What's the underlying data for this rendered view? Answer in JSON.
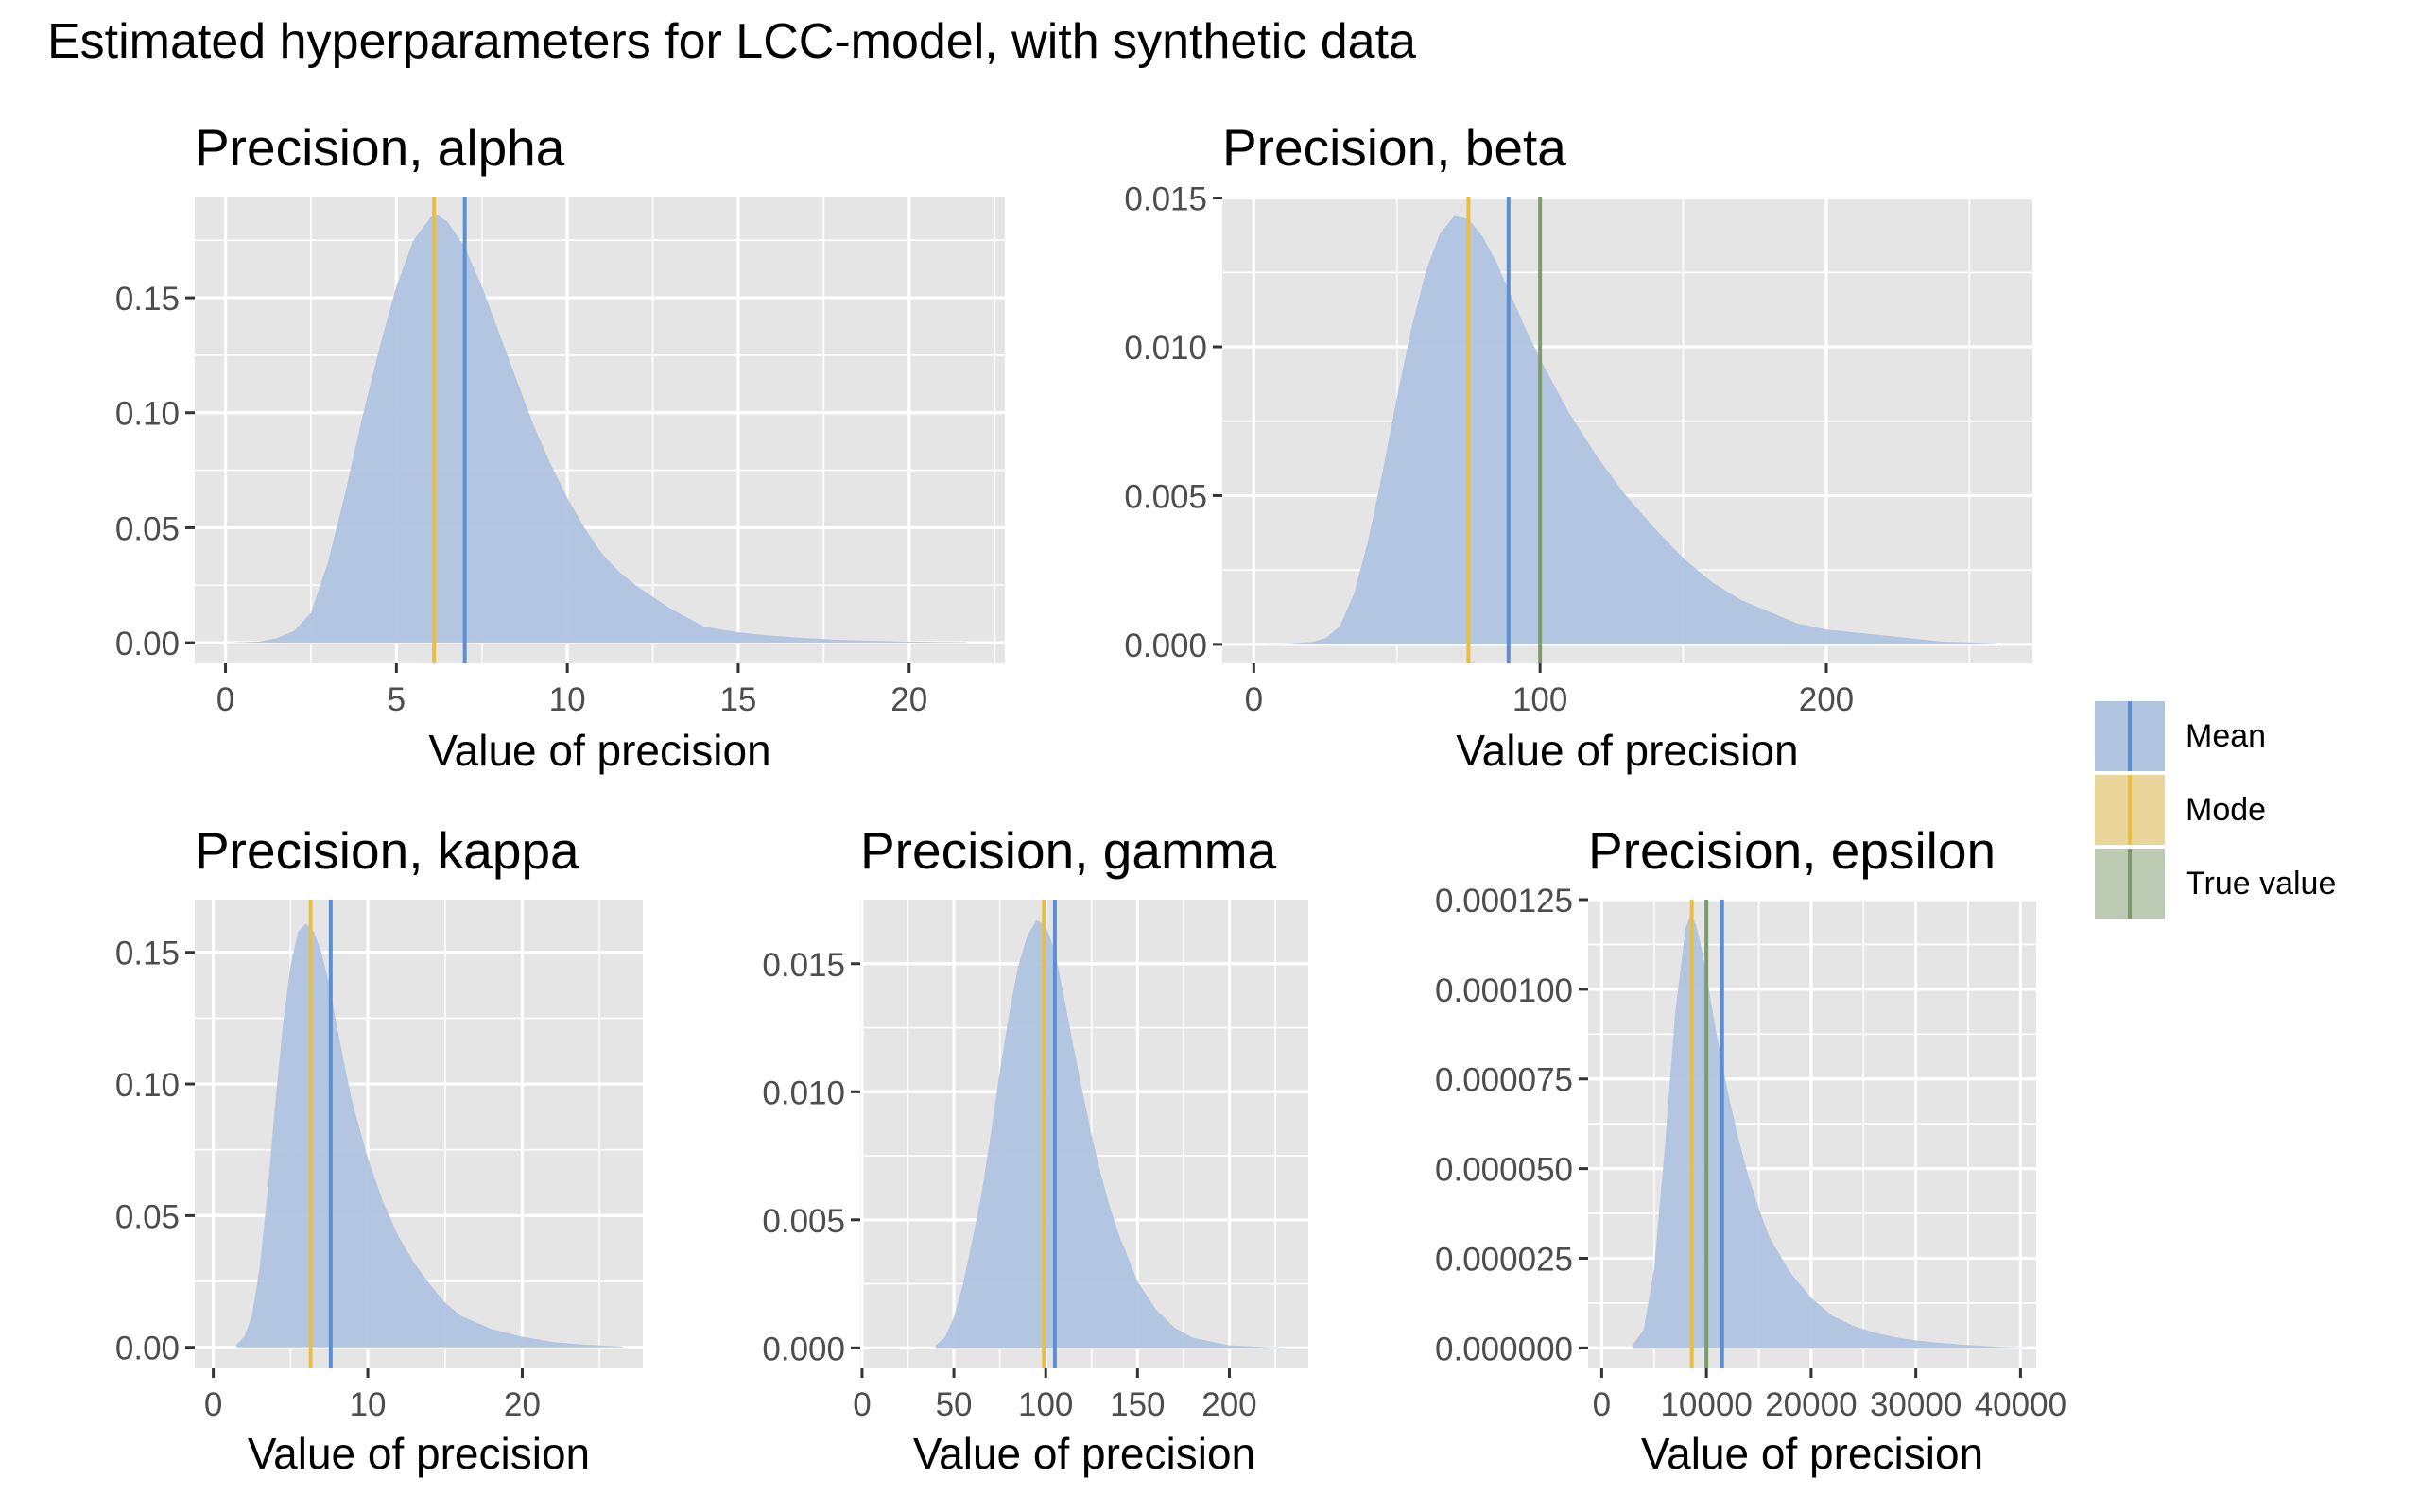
{
  "title": "Estimated hyperparameters for LCC-model, with synthetic data",
  "colors": {
    "density_fill": "#b0c4e0",
    "mean": "#5b8fd4",
    "mode": "#e8bf44",
    "true_value": "#7e9b6b",
    "panel_bg": "#e5e5e5",
    "grid": "#ffffff",
    "axis_text": "#4d4d4d"
  },
  "legend": {
    "items": [
      {
        "label": "Mean",
        "color_key": "mean"
      },
      {
        "label": "Mode",
        "color_key": "mode"
      },
      {
        "label": "True value",
        "color_key": "true_value"
      }
    ]
  },
  "chart_data": [
    {
      "type": "area",
      "title": "Precision, alpha",
      "xlabel": "Value of precision",
      "ylabel": "",
      "xlim": [
        -0.9,
        22.8
      ],
      "ylim": [
        -0.009,
        0.194
      ],
      "xticks": [
        0,
        5,
        10,
        15,
        20
      ],
      "xtick_labels": [
        "0",
        "5",
        "10",
        "15",
        "20"
      ],
      "yticks": [
        0,
        0.05,
        0.1,
        0.15
      ],
      "ytick_labels": [
        "0.00",
        "0.05",
        "0.10",
        "0.15"
      ],
      "density": {
        "x": [
          0,
          1,
          1.5,
          2,
          2.5,
          3,
          3.5,
          4,
          4.5,
          5,
          5.5,
          6,
          6.2,
          6.5,
          7,
          7.5,
          8,
          8.5,
          9,
          9.5,
          10,
          10.5,
          11,
          11.5,
          12,
          12.5,
          13,
          13.5,
          14,
          15,
          16,
          17,
          18,
          19,
          20,
          21,
          21.7
        ],
        "y": [
          0,
          0.0005,
          0.002,
          0.005,
          0.013,
          0.035,
          0.065,
          0.098,
          0.128,
          0.155,
          0.175,
          0.185,
          0.186,
          0.183,
          0.172,
          0.155,
          0.135,
          0.115,
          0.095,
          0.078,
          0.063,
          0.05,
          0.039,
          0.031,
          0.025,
          0.02,
          0.015,
          0.011,
          0.007,
          0.0045,
          0.003,
          0.002,
          0.0012,
          0.0008,
          0.0005,
          0.0003,
          0.0002
        ]
      },
      "mean": 7.0,
      "mode": 6.1
    },
    {
      "type": "area",
      "title": "Precision, beta",
      "xlabel": "Value of precision",
      "ylabel": "",
      "xlim": [
        -11,
        272
      ],
      "ylim": [
        -0.00064,
        0.01505
      ],
      "xticks": [
        0,
        100,
        200
      ],
      "xtick_labels": [
        "0",
        "100",
        "200"
      ],
      "yticks": [
        0,
        0.005,
        0.01,
        0.015
      ],
      "ytick_labels": [
        "0.000",
        "0.005",
        "0.010",
        "0.015"
      ],
      "density": {
        "x": [
          0,
          10,
          20,
          25,
          30,
          35,
          40,
          45,
          50,
          55,
          60,
          65,
          70,
          75,
          80,
          85,
          90,
          95,
          100,
          110,
          120,
          130,
          140,
          150,
          160,
          170,
          180,
          190,
          200,
          220,
          240,
          260
        ],
        "y": [
          0,
          2e-05,
          8e-05,
          0.0002,
          0.0006,
          0.0017,
          0.0035,
          0.0058,
          0.0083,
          0.0106,
          0.0125,
          0.0138,
          0.0144,
          0.0143,
          0.0137,
          0.0128,
          0.0117,
          0.0106,
          0.0096,
          0.0078,
          0.0063,
          0.005,
          0.0039,
          0.0029,
          0.0021,
          0.0015,
          0.0011,
          0.0007,
          0.0005,
          0.0003,
          0.0001,
          3e-05
        ]
      },
      "mean": 89,
      "mode": 75,
      "true_value": 100
    },
    {
      "type": "area",
      "title": "Precision, kappa",
      "xlabel": "Value of precision",
      "ylabel": "",
      "xlim": [
        -1.2,
        27.8
      ],
      "ylim": [
        -0.008,
        0.17
      ],
      "xticks": [
        0,
        10,
        20
      ],
      "xtick_labels": [
        "0",
        "10",
        "20"
      ],
      "yticks": [
        0,
        0.05,
        0.1,
        0.15
      ],
      "ytick_labels": [
        "0.00",
        "0.05",
        "0.10",
        "0.15"
      ],
      "density": {
        "x": [
          1.5,
          2,
          2.5,
          3,
          3.5,
          4,
          4.5,
          5,
          5.5,
          6,
          6.5,
          7,
          7.5,
          8,
          8.5,
          9,
          10,
          11,
          12,
          13,
          14,
          15,
          16,
          18,
          20,
          22,
          24,
          26.5
        ],
        "y": [
          0.001,
          0.004,
          0.012,
          0.03,
          0.058,
          0.092,
          0.122,
          0.145,
          0.158,
          0.161,
          0.158,
          0.15,
          0.138,
          0.122,
          0.107,
          0.093,
          0.072,
          0.055,
          0.042,
          0.032,
          0.024,
          0.017,
          0.012,
          0.007,
          0.004,
          0.002,
          0.001,
          0.0003
        ]
      },
      "mean": 7.6,
      "mode": 6.3
    },
    {
      "type": "area",
      "title": "Precision, gamma",
      "xlabel": "Value of precision",
      "ylabel": "",
      "xlim": [
        -1,
        243
      ],
      "ylim": [
        -0.0008,
        0.0175
      ],
      "xticks": [
        0,
        50,
        100,
        150,
        200
      ],
      "xtick_labels": [
        "0",
        "50",
        "100",
        "150",
        "200"
      ],
      "yticks": [
        0,
        0.005,
        0.01,
        0.015
      ],
      "ytick_labels": [
        "0.000",
        "0.005",
        "0.010",
        "0.015"
      ],
      "density": {
        "x": [
          40,
          45,
          50,
          55,
          60,
          65,
          70,
          75,
          80,
          85,
          90,
          95,
          100,
          105,
          110,
          115,
          120,
          125,
          130,
          135,
          140,
          150,
          160,
          170,
          180,
          200,
          220,
          230
        ],
        "y": [
          0.0001,
          0.0004,
          0.0012,
          0.0025,
          0.0042,
          0.006,
          0.0083,
          0.0108,
          0.013,
          0.0149,
          0.0161,
          0.0167,
          0.0165,
          0.0155,
          0.0137,
          0.0118,
          0.01,
          0.0083,
          0.0068,
          0.0055,
          0.0044,
          0.0026,
          0.0015,
          0.0008,
          0.0004,
          0.0001,
          3e-05,
          1e-05
        ]
      },
      "mean": 105,
      "mode": 99
    },
    {
      "type": "area",
      "title": "Precision, epsilon",
      "xlabel": "Value of precision",
      "ylabel": "",
      "xlim": [
        -1300,
        41500
      ],
      "ylim": [
        -5.7e-06,
        0.000125
      ],
      "xticks": [
        0,
        10000,
        20000,
        30000,
        40000
      ],
      "xtick_labels": [
        "0",
        "10000",
        "20000",
        "30000",
        "40000"
      ],
      "yticks": [
        0,
        2.5e-05,
        5e-05,
        7.5e-05,
        0.0001,
        0.000125
      ],
      "ytick_labels": [
        "0.000000",
        "0.000025",
        "0.000050",
        "0.000075",
        "0.000100",
        "0.000125"
      ],
      "density": {
        "x": [
          3000,
          4000,
          5000,
          6000,
          7000,
          8000,
          8500,
          9000,
          9500,
          10000,
          11000,
          12000,
          13000,
          14000,
          15000,
          16000,
          18000,
          20000,
          22000,
          24000,
          26000,
          28000,
          30000,
          32000,
          35000,
          38000,
          40000
        ],
        "y": [
          1e-06,
          5e-06,
          2.2e-05,
          5.5e-05,
          9.3e-05,
          0.000117,
          0.000121,
          0.000118,
          0.000112,
          0.000104,
          8.7e-05,
          7.2e-05,
          5.9e-05,
          4.8e-05,
          3.9e-05,
          3.1e-05,
          2.1e-05,
          1.4e-05,
          9e-06,
          6.2e-06,
          4.3e-06,
          3e-06,
          2.1e-06,
          1.5e-06,
          8e-07,
          3e-07,
          1e-07
        ]
      },
      "mean": 11500,
      "mode": 8600,
      "true_value": 10000
    }
  ]
}
